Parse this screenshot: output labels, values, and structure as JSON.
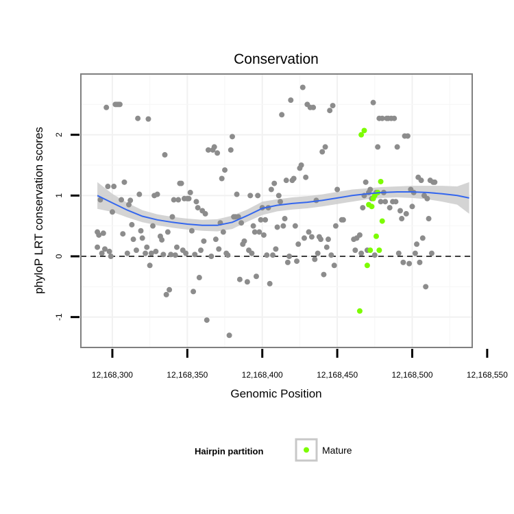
{
  "chart_data": {
    "type": "scatter",
    "title": "Conservation",
    "xlabel": "Genomic Position",
    "ylabel": "phyloP LRT conservation scores",
    "xlim": [
      12168279,
      12168540
    ],
    "ylim": [
      -1.5,
      3.0
    ],
    "x_ticks": [
      12168300,
      12168350,
      12168400,
      12168450,
      12168500,
      12168550
    ],
    "x_tick_labels": [
      "12,168,300",
      "12,168,350",
      "12,168,400",
      "12,168,450",
      "12,168,500",
      "12,168,550"
    ],
    "y_ticks": [
      -1,
      0,
      1,
      2
    ],
    "y_tick_labels": [
      "-1",
      "0",
      "1",
      "2"
    ],
    "reference_line": {
      "y": 0,
      "style": "dashed"
    },
    "legend": {
      "title": "Hairpin partition",
      "entries": [
        {
          "label": "Mature",
          "color": "#7cfc00"
        }
      ]
    },
    "colors": {
      "other": "#8c8c8c",
      "mature": "#7cfc00",
      "smooth": "#3366ee",
      "band": "#cccccc"
    },
    "series": [
      {
        "name": "Other",
        "points": [
          [
            12168290,
            0.15
          ],
          [
            12168290,
            0.4
          ],
          [
            12168291,
            0.35
          ],
          [
            12168292,
            0.93
          ],
          [
            12168293,
            0.05
          ],
          [
            12168294,
            0.38
          ],
          [
            12168295,
            0.12
          ],
          [
            12168296,
            2.45
          ],
          [
            12168297,
            1.15
          ],
          [
            12168298,
            0.08
          ],
          [
            12168299,
            0.0
          ],
          [
            12168300,
            0.73
          ],
          [
            12168301,
            1.15
          ],
          [
            12168302,
            2.5
          ],
          [
            12168303,
            2.5
          ],
          [
            12168304,
            2.5
          ],
          [
            12168305,
            2.5
          ],
          [
            12168306,
            0.93
          ],
          [
            12168307,
            0.37
          ],
          [
            12168308,
            1.22
          ],
          [
            12168310,
            0.05
          ],
          [
            12168311,
            0.85
          ],
          [
            12168312,
            0.92
          ],
          [
            12168313,
            0.52
          ],
          [
            12168314,
            0.28
          ],
          [
            12168316,
            0.1
          ],
          [
            12168317,
            2.27
          ],
          [
            12168318,
            1.02
          ],
          [
            12168319,
            0.42
          ],
          [
            12168320,
            0.3
          ],
          [
            12168322,
            0.05
          ],
          [
            12168323,
            0.15
          ],
          [
            12168324,
            2.26
          ],
          [
            12168325,
            -0.15
          ],
          [
            12168326,
            0.05
          ],
          [
            12168327,
            0.5
          ],
          [
            12168328,
            1.0
          ],
          [
            12168329,
            0.08
          ],
          [
            12168330,
            1.02
          ],
          [
            12168332,
            0.33
          ],
          [
            12168333,
            0.27
          ],
          [
            12168334,
            0.03
          ],
          [
            12168335,
            1.67
          ],
          [
            12168336,
            -0.63
          ],
          [
            12168337,
            0.4
          ],
          [
            12168338,
            -0.55
          ],
          [
            12168339,
            0.03
          ],
          [
            12168340,
            0.65
          ],
          [
            12168341,
            0.93
          ],
          [
            12168342,
            0.02
          ],
          [
            12168343,
            0.15
          ],
          [
            12168344,
            0.93
          ],
          [
            12168345,
            1.2
          ],
          [
            12168346,
            1.2
          ],
          [
            12168347,
            0.1
          ],
          [
            12168348,
            0.95
          ],
          [
            12168349,
            0.05
          ],
          [
            12168350,
            0.95
          ],
          [
            12168351,
            0.95
          ],
          [
            12168352,
            1.05
          ],
          [
            12168353,
            0.42
          ],
          [
            12168354,
            -0.58
          ],
          [
            12168355,
            0.03
          ],
          [
            12168356,
            0.9
          ],
          [
            12168357,
            0.8
          ],
          [
            12168358,
            -0.35
          ],
          [
            12168359,
            0.1
          ],
          [
            12168360,
            0.75
          ],
          [
            12168361,
            0.25
          ],
          [
            12168362,
            0.7
          ],
          [
            12168363,
            -1.05
          ],
          [
            12168364,
            1.75
          ],
          [
            12168366,
            0.0
          ],
          [
            12168367,
            1.75
          ],
          [
            12168368,
            1.8
          ],
          [
            12168369,
            0.28
          ],
          [
            12168370,
            1.7
          ],
          [
            12168371,
            0.12
          ],
          [
            12168372,
            0.55
          ],
          [
            12168373,
            1.28
          ],
          [
            12168374,
            0.4
          ],
          [
            12168375,
            1.42
          ],
          [
            12168376,
            0.05
          ],
          [
            12168377,
            0.02
          ],
          [
            12168378,
            -1.3
          ],
          [
            12168379,
            1.75
          ],
          [
            12168380,
            1.97
          ],
          [
            12168381,
            0.65
          ],
          [
            12168382,
            0.65
          ],
          [
            12168383,
            1.02
          ],
          [
            12168384,
            0.65
          ],
          [
            12168385,
            -0.38
          ],
          [
            12168386,
            0.55
          ],
          [
            12168387,
            0.2
          ],
          [
            12168388,
            0.25
          ],
          [
            12168390,
            -0.42
          ],
          [
            12168391,
            0.1
          ],
          [
            12168392,
            1.0
          ],
          [
            12168393,
            0.05
          ],
          [
            12168394,
            0.5
          ],
          [
            12168395,
            0.4
          ],
          [
            12168396,
            -0.33
          ],
          [
            12168397,
            1.0
          ],
          [
            12168398,
            0.4
          ],
          [
            12168399,
            0.6
          ],
          [
            12168400,
            0.8
          ],
          [
            12168401,
            0.35
          ],
          [
            12168402,
            0.6
          ],
          [
            12168403,
            0.02
          ],
          [
            12168404,
            0.8
          ],
          [
            12168405,
            -0.45
          ],
          [
            12168406,
            1.1
          ],
          [
            12168407,
            0.02
          ],
          [
            12168408,
            1.2
          ],
          [
            12168409,
            0.12
          ],
          [
            12168410,
            0.48
          ],
          [
            12168411,
            1.0
          ],
          [
            12168412,
            0.9
          ],
          [
            12168413,
            2.33
          ],
          [
            12168414,
            0.5
          ],
          [
            12168415,
            0.62
          ],
          [
            12168416,
            1.25
          ],
          [
            12168417,
            -0.1
          ],
          [
            12168418,
            0.0
          ],
          [
            12168419,
            2.57
          ],
          [
            12168420,
            1.25
          ],
          [
            12168421,
            1.28
          ],
          [
            12168422,
            0.5
          ],
          [
            12168423,
            -0.08
          ],
          [
            12168424,
            0.2
          ],
          [
            12168425,
            1.45
          ],
          [
            12168426,
            1.5
          ],
          [
            12168427,
            2.78
          ],
          [
            12168428,
            0.3
          ],
          [
            12168429,
            1.3
          ],
          [
            12168430,
            2.5
          ],
          [
            12168431,
            0.4
          ],
          [
            12168432,
            2.45
          ],
          [
            12168433,
            0.32
          ],
          [
            12168434,
            2.45
          ],
          [
            12168435,
            -0.05
          ],
          [
            12168436,
            0.92
          ],
          [
            12168437,
            0.05
          ],
          [
            12168438,
            0.32
          ],
          [
            12168439,
            0.28
          ],
          [
            12168440,
            1.72
          ],
          [
            12168441,
            -0.3
          ],
          [
            12168442,
            1.8
          ],
          [
            12168443,
            0.15
          ],
          [
            12168444,
            0.28
          ],
          [
            12168445,
            2.4
          ],
          [
            12168446,
            0.02
          ],
          [
            12168447,
            2.48
          ],
          [
            12168448,
            -0.15
          ],
          [
            12168449,
            0.5
          ],
          [
            12168450,
            1.1
          ],
          [
            12168453,
            0.6
          ],
          [
            12168454,
            0.6
          ],
          [
            12168461,
            0.28
          ],
          [
            12168462,
            0.1
          ],
          [
            12168463,
            0.3
          ],
          [
            12168465,
            0.35
          ],
          [
            12168466,
            0.05
          ],
          [
            12168467,
            0.8
          ],
          [
            12168468,
            1.0
          ],
          [
            12168469,
            1.22
          ],
          [
            12168470,
            0.1
          ],
          [
            12168471,
            1.05
          ],
          [
            12168472,
            1.1
          ],
          [
            12168473,
            0.95
          ],
          [
            12168474,
            2.53
          ],
          [
            12168475,
            0.02
          ],
          [
            12168476,
            1.05
          ],
          [
            12168477,
            1.8
          ],
          [
            12168478,
            2.27
          ],
          [
            12168479,
            0.9
          ],
          [
            12168480,
            2.27
          ],
          [
            12168481,
            1.05
          ],
          [
            12168482,
            0.9
          ],
          [
            12168483,
            2.27
          ],
          [
            12168484,
            2.27
          ],
          [
            12168485,
            0.8
          ],
          [
            12168486,
            2.27
          ],
          [
            12168487,
            0.9
          ],
          [
            12168488,
            2.27
          ],
          [
            12168489,
            0.9
          ],
          [
            12168490,
            1.8
          ],
          [
            12168491,
            0.05
          ],
          [
            12168492,
            0.75
          ],
          [
            12168493,
            0.62
          ],
          [
            12168494,
            -0.1
          ],
          [
            12168495,
            1.98
          ],
          [
            12168496,
            0.7
          ],
          [
            12168497,
            1.98
          ],
          [
            12168498,
            -0.12
          ],
          [
            12168499,
            1.1
          ],
          [
            12168500,
            0.82
          ],
          [
            12168501,
            1.05
          ],
          [
            12168502,
            0.05
          ],
          [
            12168503,
            0.2
          ],
          [
            12168504,
            1.3
          ],
          [
            12168505,
            -0.1
          ],
          [
            12168506,
            1.25
          ],
          [
            12168507,
            0.3
          ],
          [
            12168508,
            1.0
          ],
          [
            12168509,
            -0.5
          ],
          [
            12168510,
            0.95
          ],
          [
            12168511,
            0.62
          ],
          [
            12168512,
            1.25
          ],
          [
            12168513,
            0.05
          ],
          [
            12168514,
            1.22
          ],
          [
            12168515,
            1.22
          ]
        ]
      },
      {
        "name": "Mature",
        "points": [
          [
            12168466,
            2.0
          ],
          [
            12168468,
            2.07
          ],
          [
            12168471,
            0.85
          ],
          [
            12168473,
            0.82
          ],
          [
            12168474,
            0.95
          ],
          [
            12168475,
            1.0
          ],
          [
            12168476,
            0.33
          ],
          [
            12168477,
            1.05
          ],
          [
            12168478,
            0.1
          ],
          [
            12168479,
            1.23
          ],
          [
            12168480,
            0.58
          ],
          [
            12168472,
            0.1
          ],
          [
            12168470,
            -0.15
          ],
          [
            12168465,
            -0.9
          ]
        ]
      }
    ],
    "smooth": {
      "method": "loess",
      "x": [
        12168290,
        12168300,
        12168310,
        12168320,
        12168330,
        12168340,
        12168350,
        12168360,
        12168370,
        12168380,
        12168390,
        12168400,
        12168410,
        12168420,
        12168430,
        12168440,
        12168450,
        12168460,
        12168470,
        12168480,
        12168490,
        12168500,
        12168510,
        12168520,
        12168530,
        12168538
      ],
      "y": [
        1.0,
        0.88,
        0.76,
        0.66,
        0.6,
        0.56,
        0.53,
        0.51,
        0.51,
        0.56,
        0.67,
        0.79,
        0.84,
        0.87,
        0.89,
        0.92,
        0.96,
        1.0,
        1.03,
        1.05,
        1.06,
        1.06,
        1.05,
        1.03,
        1.0,
        0.96
      ],
      "lower": [
        0.78,
        0.73,
        0.64,
        0.56,
        0.51,
        0.47,
        0.44,
        0.42,
        0.41,
        0.45,
        0.57,
        0.68,
        0.74,
        0.77,
        0.79,
        0.82,
        0.86,
        0.9,
        0.94,
        0.96,
        0.97,
        0.96,
        0.94,
        0.9,
        0.85,
        0.7
      ],
      "upper": [
        1.22,
        1.03,
        0.88,
        0.76,
        0.69,
        0.65,
        0.62,
        0.6,
        0.61,
        0.67,
        0.77,
        0.9,
        0.94,
        0.97,
        0.99,
        1.02,
        1.06,
        1.1,
        1.12,
        1.14,
        1.15,
        1.16,
        1.16,
        1.16,
        1.15,
        1.22
      ]
    }
  }
}
